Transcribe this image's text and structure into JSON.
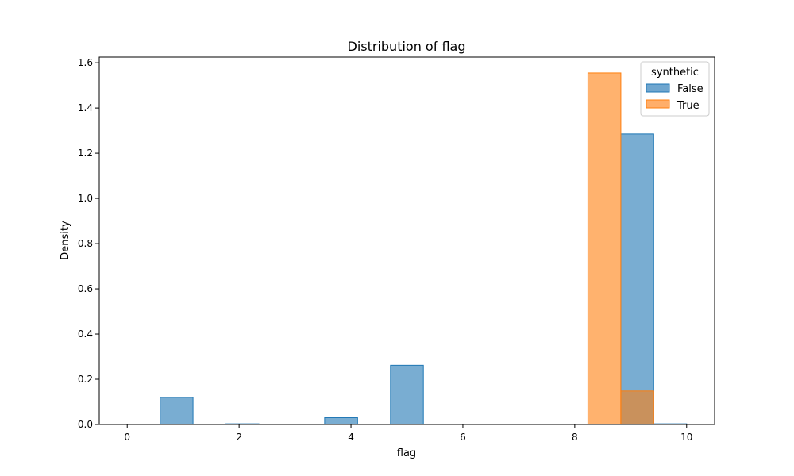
{
  "chart_data": {
    "type": "histogram",
    "title": "Distribution of flag",
    "xlabel": "flag",
    "ylabel": "Density",
    "xlim": [
      -0.5,
      10.5
    ],
    "ylim": [
      0,
      1.625
    ],
    "xticks": [
      0,
      2,
      4,
      6,
      8,
      10
    ],
    "yticks": [
      0.0,
      0.2,
      0.4,
      0.6,
      0.8,
      1.0,
      1.2,
      1.4,
      1.6
    ],
    "ytick_labels": [
      "0.0",
      "0.2",
      "0.4",
      "0.6",
      "0.8",
      "1.0",
      "1.2",
      "1.4",
      "1.6"
    ],
    "grid": false,
    "legend": {
      "title": "synthetic",
      "placement": "top-right"
    },
    "bin_edges": [
      0.0,
      0.588,
      1.176,
      1.765,
      2.353,
      2.941,
      3.529,
      4.118,
      4.706,
      5.294,
      5.882,
      6.471,
      7.059,
      7.647,
      8.235,
      8.824,
      9.412,
      10.0
    ],
    "series": [
      {
        "name": "False",
        "color": "#1f77b4",
        "fill": "#6fa6cf",
        "values": [
          0.0,
          0.12,
          0.0,
          0.003,
          0.0,
          0.0,
          0.03,
          0.0,
          0.262,
          0.0,
          0.0,
          0.0,
          0.0,
          0.0,
          0.0,
          1.285,
          0.003
        ]
      },
      {
        "name": "True",
        "color": "#ff7f0e",
        "fill": "#ffae6a",
        "values": [
          0.0,
          0.0,
          0.0,
          0.0,
          0.0,
          0.0,
          0.0,
          0.0,
          0.0,
          0.0,
          0.0,
          0.0,
          0.0,
          0.0,
          1.555,
          0.148,
          0.0
        ]
      }
    ]
  }
}
